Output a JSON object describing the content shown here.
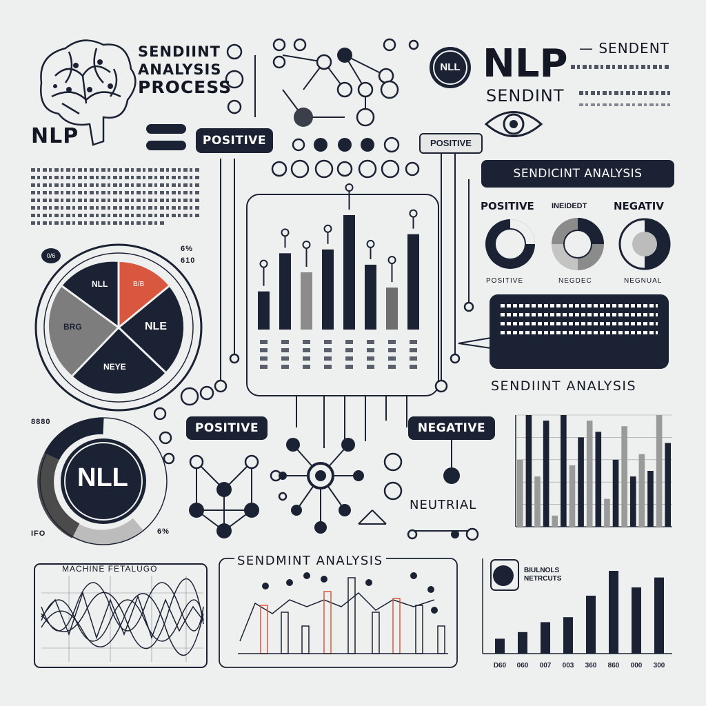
{
  "colors": {
    "ink": "#1b2233",
    "bg": "#eef0ef",
    "accent": "#d9573f",
    "gray": "#7d7d7d",
    "light": "#bcbcbc"
  },
  "header": {
    "brain_icon": "brain-icon",
    "title_lines": [
      "SENDIINT",
      "ANALYSIS",
      "PROCESS"
    ],
    "nlp_left": "NLP",
    "nll_badge": "NLL",
    "nlp_big": "NLP",
    "sendint": "SENDINT",
    "sendent": "SENDENT"
  },
  "labels": {
    "positive_tag_top": "POSITIVE",
    "positive_tag_mid": "POSITIVE",
    "positive_tag_low": "POSITIVE",
    "negative_tag": "NEGATIVE",
    "neutrial": "NEUTRIAL",
    "sendient_banner": "SENDICINT ANALYSIS",
    "sendiint_right": "SENDIINT ANALYSIS",
    "sendmint_bottom": "SENDMINT ANALYSIS",
    "machine": "MACHINE FETALUGO",
    "donut_labels": [
      "POSITIVE",
      "INEIDEDT",
      "NEGATIV"
    ],
    "donut_sub": [
      "POSITIVE",
      "NEGDEC",
      "NEGNUAL"
    ],
    "pie_labels": [
      "NLL",
      "B/B",
      "NLE",
      "NEYE",
      "BRG"
    ],
    "pie_side": [
      "0/6",
      "6%",
      "610"
    ],
    "ring_center": "NLL",
    "ring_side": [
      "8880",
      "6%",
      "IFO"
    ],
    "note_title": "BIULNOLS NETRCUTS"
  },
  "chart_data": [
    {
      "type": "bar",
      "values": [
        10,
        20,
        15,
        21,
        30,
        17,
        11,
        25
      ]
    },
    {
      "type": "bar",
      "values": [
        60,
        100,
        45,
        95,
        10,
        100,
        55,
        80,
        95,
        85,
        25,
        60,
        90,
        45,
        65,
        50,
        100,
        75
      ],
      "title": "SENDIINT ANALYSIS"
    },
    {
      "type": "bar",
      "values": [
        18,
        26,
        38,
        44,
        70,
        100,
        80,
        92
      ],
      "xlabels": [
        "D60",
        "060",
        "007",
        "003",
        "360",
        "860",
        "000",
        "300"
      ]
    }
  ]
}
